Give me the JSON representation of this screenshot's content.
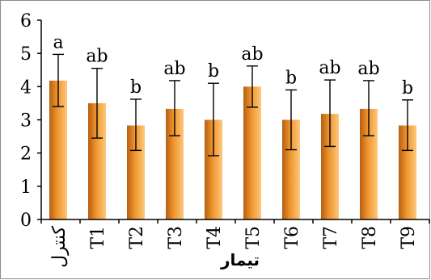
{
  "chart_data": {
    "type": "bar",
    "categories": [
      "کنترل",
      "T1",
      "T2",
      "T3",
      "T4",
      "T5",
      "T6",
      "T7",
      "T8",
      "T9"
    ],
    "values": [
      4.18,
      3.5,
      2.83,
      3.33,
      3.0,
      4.0,
      3.0,
      3.18,
      3.33,
      2.83
    ],
    "error_low": [
      3.4,
      2.45,
      2.08,
      2.52,
      1.92,
      3.38,
      2.1,
      2.2,
      2.52,
      2.08
    ],
    "error_high": [
      4.97,
      4.55,
      3.62,
      4.18,
      4.1,
      4.62,
      3.9,
      4.2,
      4.18,
      3.6
    ],
    "significance_letters": [
      "a",
      "ab",
      "b",
      "ab",
      "b",
      "ab",
      "b",
      "ab",
      "ab",
      "b"
    ],
    "xlabel": "تیمار",
    "ylabel": "",
    "ylim": [
      0,
      6
    ],
    "yticks": [
      "0",
      "1",
      "2",
      "3",
      "4",
      "5",
      "6"
    ],
    "grid": false,
    "legend": "none",
    "colors": {
      "bar_dark": "#b55f12",
      "bar_mid": "#f0952e",
      "bar_light": "#fcc87c",
      "axis": "#000000",
      "error_bar": "#000000"
    }
  }
}
